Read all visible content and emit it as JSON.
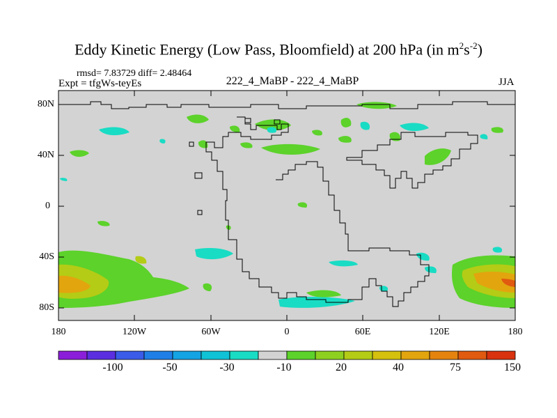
{
  "title": {
    "main": "Eddy Kinetic Energy (Low Pass, Bloomfield) at 200 hPa (in m",
    "sup1": "2",
    "mid": "s",
    "sup2": "-2",
    "end": ")"
  },
  "stats": "rmsd= 7.83729 diff= 2.48464",
  "expt": "Expt = tfgWs-teyEs",
  "center_label": "222_4_MaBP - 222_4_MaBP",
  "season": "JJA",
  "lat_labels": [
    "80N",
    "40N",
    "0",
    "40S",
    "80S"
  ],
  "lon_labels": [
    "180",
    "120W",
    "60W",
    "0",
    "60E",
    "120E",
    "180"
  ],
  "colorbar": {
    "colors": [
      "#8b1fd9",
      "#5b2ee0",
      "#3a5ce8",
      "#1f7fe6",
      "#14a3e3",
      "#10c2d6",
      "#19dcc4",
      "#d3d3d3",
      "#5cd22a",
      "#8ed01f",
      "#b4cc15",
      "#d4c00d",
      "#e2a50e",
      "#e4840f",
      "#e05a0f",
      "#d8320e"
    ],
    "labels": [
      "-100",
      "-50",
      "-30",
      "-10",
      "20",
      "40",
      "75",
      "150"
    ]
  },
  "map": {
    "background": "#d3d3d3",
    "cyan": "#19dcc4",
    "green": "#5cd22a",
    "yellowgreen": "#b4cc15",
    "orange": "#e2a50e"
  }
}
